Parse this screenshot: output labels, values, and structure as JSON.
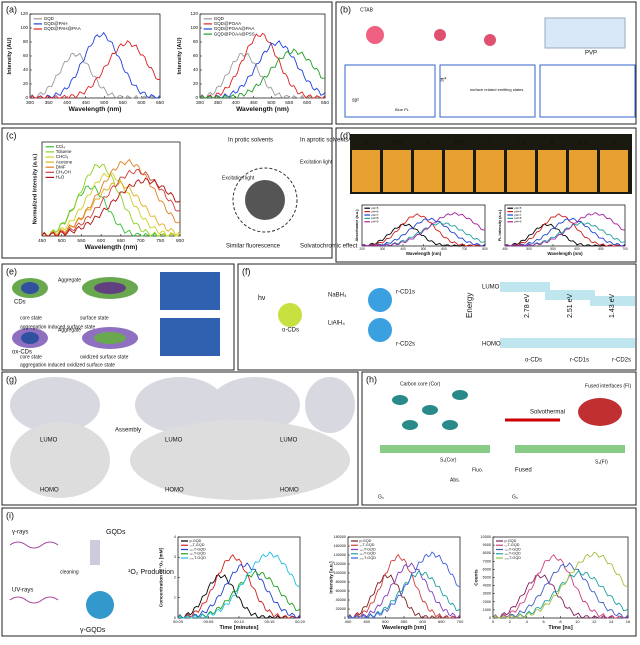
{
  "panels": [
    {
      "label": "(a)",
      "texts": [],
      "plots": [
        {
          "xlabel": "Wavelength (nm)",
          "ylabel": "Intensity (AU)",
          "xticks": [
            "300",
            "350",
            "400",
            "450",
            "500",
            "550",
            "600",
            "650"
          ],
          "yticks": [
            "0",
            "20",
            "40",
            "60",
            "80",
            "100",
            "120"
          ],
          "legend": [
            {
              "name": "GQD",
              "color": "#9a9a9a"
            },
            {
              "name": "GQD@PAH",
              "color": "#2040e0"
            },
            {
              "name": "GQD@PAH@PAA",
              "color": "#e02020"
            }
          ]
        },
        {
          "xlabel": "Wavelength (nm)",
          "ylabel": "Intensity (AU)",
          "xticks": [
            "300",
            "350",
            "400",
            "450",
            "500",
            "550",
            "600",
            "650"
          ],
          "yticks": [
            "0",
            "20",
            "40",
            "60",
            "80",
            "100",
            "120"
          ],
          "legend": [
            {
              "name": "GQD",
              "color": "#9a9a9a"
            },
            {
              "name": "GQD@POAA",
              "color": "#e02020"
            },
            {
              "name": "GQD@POAA@PAA",
              "color": "#2040e0"
            },
            {
              "name": "GQD@POAA@PSS",
              "color": "#20a020"
            }
          ]
        }
      ]
    },
    {
      "label": "(b)",
      "texts": [
        "CTAB",
        "PVP",
        "π*",
        "sp²",
        "surface related emitting states",
        "Blue PL"
      ],
      "plots": []
    },
    {
      "label": "(c)",
      "texts": [
        "In protic solvents",
        "In aprotic solvents",
        "Excitation light",
        "Excitation light",
        "Similar fluorescence",
        "Solvatochromic effect"
      ],
      "plots": [
        {
          "xlabel": "Wavelength (nm)",
          "ylabel": "Normalized Intensity (a.u.)",
          "xticks": [
            "450",
            "500",
            "550",
            "600",
            "650",
            "700",
            "750",
            "800"
          ],
          "yticks": [],
          "legend": [
            {
              "name": "CCl₄",
              "color": "#30c030"
            },
            {
              "name": "Toluene",
              "color": "#90d020"
            },
            {
              "name": "CHCl₃",
              "color": "#d0d020"
            },
            {
              "name": "Acetone",
              "color": "#e0b020"
            },
            {
              "name": "DMF",
              "color": "#e08020"
            },
            {
              "name": "CH₃OH",
              "color": "#d04040"
            },
            {
              "name": "H₂O",
              "color": "#b01010"
            }
          ]
        }
      ]
    },
    {
      "label": "(d)",
      "texts": [
        "5",
        "5.5",
        "6",
        "6.5",
        "7",
        "7.5",
        "8",
        "8.5",
        "9"
      ],
      "plots": [
        {
          "xlabel": "Wavelength (nm)",
          "ylabel": "Absorbance (a.u.)",
          "xticks": [
            "200",
            "300",
            "400",
            "500",
            "600",
            "700",
            "800"
          ],
          "yticks": [],
          "legend": [
            {
              "name": "pH=5",
              "color": "#000000"
            },
            {
              "name": "pH=6",
              "color": "#d02020"
            },
            {
              "name": "pH=7",
              "color": "#2040d0"
            },
            {
              "name": "pH=8",
              "color": "#20a0a0"
            },
            {
              "name": "pH=9",
              "color": "#a020a0"
            }
          ]
        },
        {
          "xlabel": "Wavelength (nm)",
          "ylabel": "PL intensity (a.u.)",
          "xticks": [
            "450",
            "500",
            "550",
            "600",
            "650",
            "700"
          ],
          "yticks": [],
          "legend": [
            {
              "name": "pH=5",
              "color": "#000000"
            },
            {
              "name": "pH=6",
              "color": "#d02020"
            },
            {
              "name": "pH=7",
              "color": "#2040d0"
            },
            {
              "name": "pH=8",
              "color": "#20a0a0"
            },
            {
              "name": "pH=9",
              "color": "#a020a0"
            }
          ]
        }
      ]
    },
    {
      "label": "(e)",
      "texts": [
        "CDs",
        "Aggregate",
        "core state",
        "surface state",
        "aggregation induced surface state",
        "ox-CDs",
        "Aggregate",
        "core state",
        "oxidized surface state",
        "aggregation induced oxidized surface state"
      ],
      "plots": []
    },
    {
      "label": "(f)",
      "texts": [
        "hν",
        "o-CDs",
        "NaBH₄",
        "LiAlH₄",
        "r-CD1s",
        "r-CD2s",
        "Energy",
        "LUMO",
        "HOMO",
        "2.78 eV",
        "2.51 eV",
        "1.43 eV",
        "o-CDs",
        "r-CD1s",
        "r-CD2s"
      ],
      "plots": []
    },
    {
      "label": "(g)",
      "texts": [
        "Assembly",
        "LUMO",
        "HOMO",
        "LUMO",
        "HOMO",
        "LUMO",
        "HOMO"
      ],
      "plots": []
    },
    {
      "label": "(h)",
      "texts": [
        "Carbon core (Cor)",
        "Fused interfaces (FI)",
        "Solvothermal",
        "Fused",
        "S₁(Cor)",
        "S₁(FI)",
        "G₀",
        "G₀",
        "Abs.",
        "Fluo."
      ],
      "plots": []
    },
    {
      "label": "(i)",
      "texts": [
        "γ-rays",
        "GQDs",
        "cleaning",
        "UV-rays",
        "γ-GQDs",
        "¹O₂ Production"
      ],
      "plots": [
        {
          "xlabel": "Time [minutes]",
          "ylabel": "Concentration of ¹O₂ [mM]",
          "xticks": [
            "00:00",
            "00:05",
            "00:10",
            "00:15",
            "00:20"
          ],
          "yticks": [
            "0",
            "1",
            "2",
            "3",
            "4"
          ],
          "legend": [
            {
              "name": "p-GQD",
              "color": "#000000"
            },
            {
              "name": "₅₀T-GQD",
              "color": "#d02020"
            },
            {
              "name": "₁₀₀T-GQD",
              "color": "#2040d0"
            },
            {
              "name": "₁₅₀T-GQD",
              "color": "#20a020"
            },
            {
              "name": "₂₀₀T-GQD",
              "color": "#20c0e0"
            }
          ]
        },
        {
          "xlabel": "Wavelength [nm]",
          "ylabel": "Intensity [a.u.]",
          "xticks": [
            "400",
            "450",
            "500",
            "550",
            "600",
            "650",
            "700"
          ],
          "yticks": [
            "0",
            "20000",
            "40000",
            "60000",
            "80000",
            "100000",
            "120000",
            "140000",
            "160000",
            "180000"
          ],
          "legend": [
            {
              "name": "p-GQD",
              "color": "#802020"
            },
            {
              "name": "₅₀T-GQD",
              "color": "#d04040"
            },
            {
              "name": "₁₀₀T-GQD",
              "color": "#8040c0"
            },
            {
              "name": "₁₅₀T-GQD",
              "color": "#20a0a0"
            },
            {
              "name": "₂₀₀T-GQD",
              "color": "#4060e0"
            }
          ]
        },
        {
          "xlabel": "Time [ns]",
          "ylabel": "Counts",
          "xticks": [
            "0",
            "2",
            "4",
            "6",
            "8",
            "10",
            "12",
            "14",
            "16"
          ],
          "yticks": [
            "0",
            "1000",
            "2000",
            "3000",
            "4000",
            "5000",
            "6000",
            "7000",
            "8000",
            "9000",
            "10000"
          ],
          "legend": [
            {
              "name": "p-GQD",
              "color": "#802060"
            },
            {
              "name": "₅₀T-GQD",
              "color": "#d04080"
            },
            {
              "name": "₁₀₀T-GQD",
              "color": "#4060c0"
            },
            {
              "name": "₁₅₀T-GQD",
              "color": "#20a0a0"
            },
            {
              "name": "₂₀₀T-GQD",
              "color": "#a0c040"
            }
          ]
        }
      ]
    }
  ]
}
